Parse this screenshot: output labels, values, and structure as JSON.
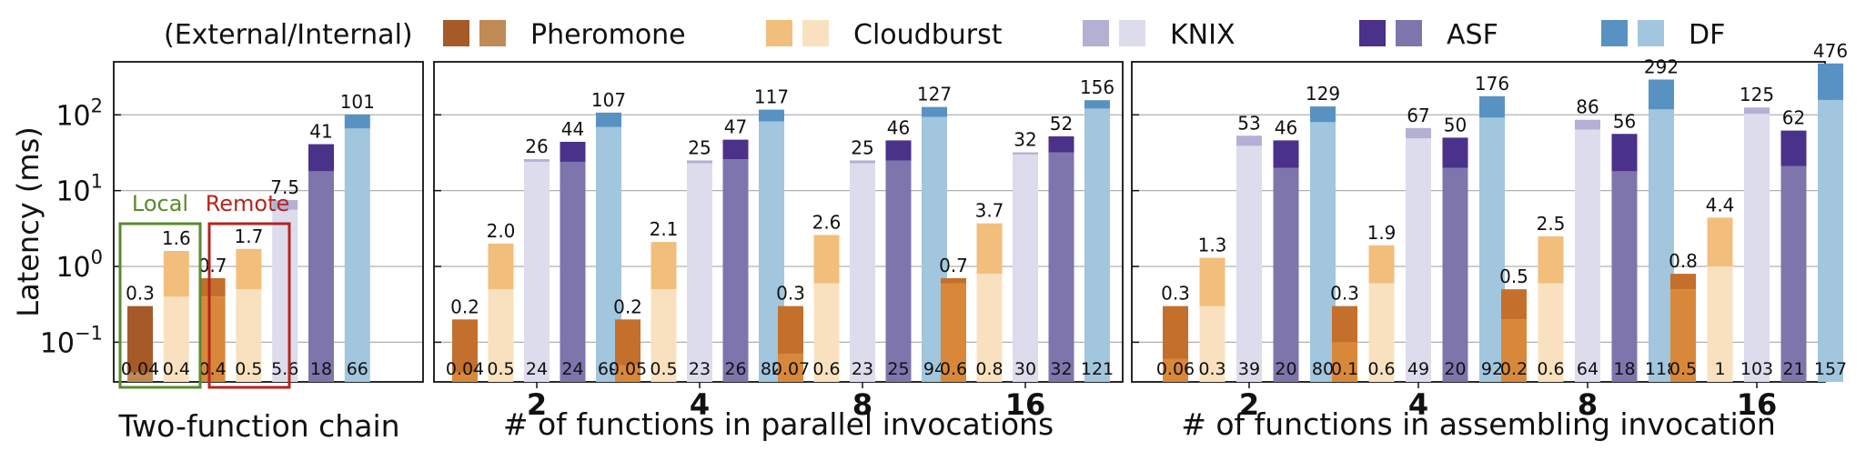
{
  "legend": {
    "prefix": "(External/Internal)",
    "entries": [
      {
        "key": "pheromone",
        "label": "Pheromone"
      },
      {
        "key": "cloudburst",
        "label": "Cloudburst"
      },
      {
        "key": "knix",
        "label": "KNIX"
      },
      {
        "key": "asf",
        "label": "ASF"
      },
      {
        "key": "df",
        "label": "DF"
      }
    ]
  },
  "colors": {
    "pheromone": {
      "external": "#a55a28",
      "internal": "#c08a57"
    },
    "pheromone_local": {
      "external": "#a55a28",
      "internal": "#c08a57"
    },
    "pheromone_remote": {
      "external": "#c46f2b",
      "internal": "#d9883a"
    },
    "cloudburst": {
      "external": "#f2be7c",
      "internal": "#f9e1bf"
    },
    "knix": {
      "external": "#b3b0d4",
      "internal": "#dcdcec"
    },
    "asf": {
      "external": "#4a3189",
      "internal": "#7e75ad"
    },
    "df": {
      "external": "#5792c3",
      "internal": "#a1c6de"
    }
  },
  "annotations": {
    "local": {
      "label": "Local",
      "color": "#5a8a2e"
    },
    "remote": {
      "label": "Remote",
      "color": "#b3261e"
    }
  },
  "chart_data": [
    {
      "type": "bar",
      "stacked": true,
      "log_scale": true,
      "ylabel": "Latency (ms)",
      "xlabel": "Two-function chain",
      "ylim": [
        0.03,
        500
      ],
      "yticks": [
        {
          "value": 0.1,
          "base": "10",
          "exp": "−1"
        },
        {
          "value": 1,
          "base": "10",
          "exp": "0"
        },
        {
          "value": 10,
          "base": "10",
          "exp": "1"
        },
        {
          "value": 100,
          "base": "10",
          "exp": "2"
        }
      ],
      "grid": true,
      "groups": [
        {
          "label": "",
          "bars": [
            {
              "system": "pheromone",
              "variant": "local",
              "total": 0.3,
              "internal": 0.04,
              "total_label": "0.3",
              "internal_label": "0.04"
            },
            {
              "system": "cloudburst",
              "variant": "local",
              "total": 1.6,
              "internal": 0.4,
              "total_label": "1.6",
              "internal_label": "0.4"
            },
            {
              "system": "pheromone",
              "variant": "remote",
              "total": 0.7,
              "internal": 0.4,
              "total_label": "0.7",
              "internal_label": "0.4"
            },
            {
              "system": "cloudburst",
              "variant": "remote",
              "total": 1.7,
              "internal": 0.5,
              "total_label": "1.7",
              "internal_label": "0.5"
            },
            {
              "system": "knix",
              "total": 7.5,
              "internal": 5.6,
              "total_label": "7.5",
              "internal_label": "5.6"
            },
            {
              "system": "asf",
              "total": 41,
              "internal": 18,
              "total_label": "41",
              "internal_label": "18"
            },
            {
              "system": "df",
              "total": 101,
              "internal": 66,
              "total_label": "101",
              "internal_label": "66"
            }
          ]
        }
      ]
    },
    {
      "type": "bar",
      "stacked": true,
      "log_scale": true,
      "xlabel": "# of functions in parallel invocations",
      "ylim": [
        0.03,
        500
      ],
      "grid": true,
      "groups": [
        {
          "label": "2",
          "bars": [
            {
              "system": "pheromone",
              "total": 0.2,
              "internal": 0.04,
              "total_label": "0.2",
              "internal_label": "0.04"
            },
            {
              "system": "cloudburst",
              "total": 2.0,
              "internal": 0.5,
              "total_label": "2.0",
              "internal_label": "0.5"
            },
            {
              "system": "knix",
              "total": 26,
              "internal": 24,
              "total_label": "26",
              "internal_label": "24"
            },
            {
              "system": "asf",
              "total": 44,
              "internal": 24,
              "total_label": "44",
              "internal_label": "24"
            },
            {
              "system": "df",
              "total": 107,
              "internal": 69,
              "total_label": "107",
              "internal_label": "69"
            }
          ]
        },
        {
          "label": "4",
          "bars": [
            {
              "system": "pheromone",
              "total": 0.2,
              "internal": 0.05,
              "total_label": "0.2",
              "internal_label": "0.05"
            },
            {
              "system": "cloudburst",
              "total": 2.1,
              "internal": 0.5,
              "total_label": "2.1",
              "internal_label": "0.5"
            },
            {
              "system": "knix",
              "total": 25,
              "internal": 23,
              "total_label": "25",
              "internal_label": "23"
            },
            {
              "system": "asf",
              "total": 47,
              "internal": 26,
              "total_label": "47",
              "internal_label": "26"
            },
            {
              "system": "df",
              "total": 117,
              "internal": 82,
              "total_label": "117",
              "internal_label": "82"
            }
          ]
        },
        {
          "label": "8",
          "bars": [
            {
              "system": "pheromone",
              "total": 0.3,
              "internal": 0.07,
              "total_label": "0.3",
              "internal_label": "0.07"
            },
            {
              "system": "cloudburst",
              "total": 2.6,
              "internal": 0.6,
              "total_label": "2.6",
              "internal_label": "0.6"
            },
            {
              "system": "knix",
              "total": 25,
              "internal": 23,
              "total_label": "25",
              "internal_label": "23"
            },
            {
              "system": "asf",
              "total": 46,
              "internal": 25,
              "total_label": "46",
              "internal_label": "25"
            },
            {
              "system": "df",
              "total": 127,
              "internal": 94,
              "total_label": "127",
              "internal_label": "94"
            }
          ]
        },
        {
          "label": "16",
          "bars": [
            {
              "system": "pheromone",
              "total": 0.7,
              "internal": 0.6,
              "total_label": "0.7",
              "internal_label": "0.6"
            },
            {
              "system": "cloudburst",
              "total": 3.7,
              "internal": 0.8,
              "total_label": "3.7",
              "internal_label": "0.8"
            },
            {
              "system": "knix",
              "total": 32,
              "internal": 30,
              "total_label": "32",
              "internal_label": "30"
            },
            {
              "system": "asf",
              "total": 52,
              "internal": 32,
              "total_label": "52",
              "internal_label": "32"
            },
            {
              "system": "df",
              "total": 156,
              "internal": 121,
              "total_label": "156",
              "internal_label": "121"
            }
          ]
        }
      ]
    },
    {
      "type": "bar",
      "stacked": true,
      "log_scale": true,
      "xlabel": "# of functions in assembling invocation",
      "ylim": [
        0.03,
        500
      ],
      "grid": true,
      "groups": [
        {
          "label": "2",
          "bars": [
            {
              "system": "pheromone",
              "total": 0.3,
              "internal": 0.06,
              "total_label": "0.3",
              "internal_label": "0.06"
            },
            {
              "system": "cloudburst",
              "total": 1.3,
              "internal": 0.3,
              "total_label": "1.3",
              "internal_label": "0.3"
            },
            {
              "system": "knix",
              "total": 53,
              "internal": 39,
              "total_label": "53",
              "internal_label": "39"
            },
            {
              "system": "asf",
              "total": 46,
              "internal": 20,
              "total_label": "46",
              "internal_label": "20"
            },
            {
              "system": "df",
              "total": 129,
              "internal": 80,
              "total_label": "129",
              "internal_label": "80"
            }
          ]
        },
        {
          "label": "4",
          "bars": [
            {
              "system": "pheromone",
              "total": 0.3,
              "internal": 0.1,
              "total_label": "0.3",
              "internal_label": "0.1"
            },
            {
              "system": "cloudburst",
              "total": 1.9,
              "internal": 0.6,
              "total_label": "1.9",
              "internal_label": "0.6"
            },
            {
              "system": "knix",
              "total": 67,
              "internal": 49,
              "total_label": "67",
              "internal_label": "49"
            },
            {
              "system": "asf",
              "total": 50,
              "internal": 20,
              "total_label": "50",
              "internal_label": "20"
            },
            {
              "system": "df",
              "total": 176,
              "internal": 92,
              "total_label": "176",
              "internal_label": "92"
            }
          ]
        },
        {
          "label": "8",
          "bars": [
            {
              "system": "pheromone",
              "total": 0.5,
              "internal": 0.2,
              "total_label": "0.5",
              "internal_label": "0.2"
            },
            {
              "system": "cloudburst",
              "total": 2.5,
              "internal": 0.6,
              "total_label": "2.5",
              "internal_label": "0.6"
            },
            {
              "system": "knix",
              "total": 86,
              "internal": 64,
              "total_label": "86",
              "internal_label": "64"
            },
            {
              "system": "asf",
              "total": 56,
              "internal": 18,
              "total_label": "56",
              "internal_label": "18"
            },
            {
              "system": "df",
              "total": 292,
              "internal": 118,
              "total_label": "292",
              "internal_label": "118"
            }
          ]
        },
        {
          "label": "16",
          "bars": [
            {
              "system": "pheromone",
              "total": 0.8,
              "internal": 0.5,
              "total_label": "0.8",
              "internal_label": "0.5"
            },
            {
              "system": "cloudburst",
              "total": 4.4,
              "internal": 1,
              "total_label": "4.4",
              "internal_label": "1"
            },
            {
              "system": "knix",
              "total": 125,
              "internal": 103,
              "total_label": "125",
              "internal_label": "103"
            },
            {
              "system": "asf",
              "total": 62,
              "internal": 21,
              "total_label": "62",
              "internal_label": "21"
            },
            {
              "system": "df",
              "total": 476,
              "internal": 157,
              "total_label": "476",
              "internal_label": "157"
            }
          ]
        }
      ]
    }
  ]
}
